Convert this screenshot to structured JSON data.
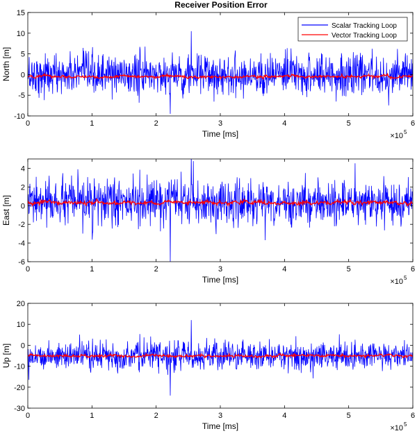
{
  "figure": {
    "title": "Receiver Position Error"
  },
  "legend": {
    "entries": [
      "Scalar Tracking Loop",
      "Vector Tracking Loop"
    ],
    "placement": "top-right",
    "colors": [
      "#0000ff",
      "#ff0000"
    ]
  },
  "chart_data": [
    {
      "type": "line",
      "title": "Receiver Position Error",
      "xlabel": "Time [ms]",
      "ylabel": "North [m]",
      "xlim": [
        0,
        6
      ],
      "x_multiplier_label": "×10",
      "x_multiplier_exp": "5",
      "ylim": [
        -10,
        15
      ],
      "xticks": [
        "0",
        "1",
        "2",
        "3",
        "4",
        "5",
        "6"
      ],
      "yticks": [
        "-10",
        "-5",
        "0",
        "5",
        "10",
        "15"
      ],
      "grid": false,
      "series": [
        {
          "name": "Scalar Tracking Loop",
          "color": "#0000ff",
          "mean": 0,
          "spread": 4.5,
          "peak_max": 10.5,
          "peak_min": -9.5
        },
        {
          "name": "Vector Tracking Loop",
          "color": "#ff0000",
          "mean": -0.5,
          "spread": 0.5
        }
      ]
    },
    {
      "type": "line",
      "title": "",
      "xlabel": "Time [ms]",
      "ylabel": "East [m]",
      "xlim": [
        0,
        6
      ],
      "x_multiplier_label": "×10",
      "x_multiplier_exp": "5",
      "ylim": [
        -6,
        5
      ],
      "xticks": [
        "0",
        "1",
        "2",
        "3",
        "4",
        "5",
        "6"
      ],
      "yticks": [
        "-6",
        "-4",
        "-2",
        "0",
        "2",
        "4"
      ],
      "grid": false,
      "series": [
        {
          "name": "Scalar Tracking Loop",
          "color": "#0000ff",
          "mean": 0.3,
          "spread": 2.2,
          "peak_max": 5.3,
          "peak_min": -6.0
        },
        {
          "name": "Vector Tracking Loop",
          "color": "#ff0000",
          "mean": 0.3,
          "spread": 0.3
        }
      ]
    },
    {
      "type": "line",
      "title": "",
      "xlabel": "Time [ms]",
      "ylabel": "Up [m]",
      "xlim": [
        0,
        6
      ],
      "x_multiplier_label": "×10",
      "x_multiplier_exp": "5",
      "ylim": [
        -30,
        20
      ],
      "xticks": [
        "0",
        "1",
        "2",
        "3",
        "4",
        "5",
        "6"
      ],
      "yticks": [
        "-30",
        "-20",
        "-10",
        "0",
        "10",
        "20"
      ],
      "grid": false,
      "series": [
        {
          "name": "Scalar Tracking Loop",
          "color": "#0000ff",
          "mean": -5,
          "spread": 6,
          "peak_max": 12,
          "peak_min": -24
        },
        {
          "name": "Vector Tracking Loop",
          "color": "#ff0000",
          "mean": -5,
          "spread": 1
        }
      ]
    }
  ]
}
